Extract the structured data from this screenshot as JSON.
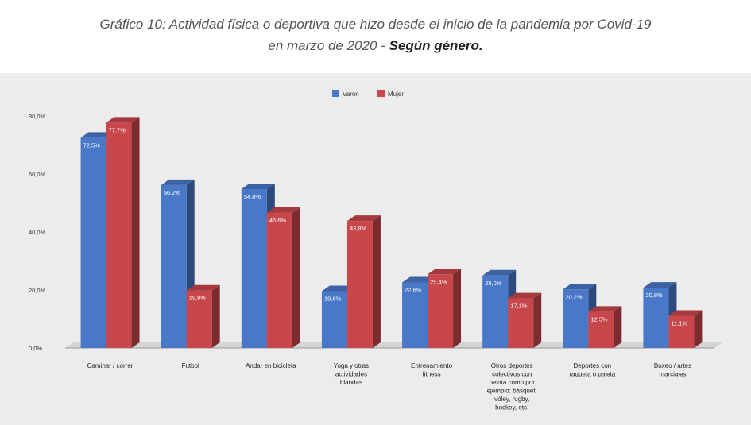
{
  "header": {
    "line1": "Gráfico 10: Actividad física o deportiva que hizo desde el inicio de la pandemia por Covid-19",
    "line2_prefix": "en marzo de 2020 - ",
    "line2_emphasis": "Según género."
  },
  "chart_data": {
    "type": "bar",
    "title": "",
    "xlabel": "",
    "ylabel": "",
    "ylim": [
      0,
      80
    ],
    "yticks": [
      "0,0%",
      "20,0%",
      "40,0%",
      "60,0%",
      "80,0%"
    ],
    "grid": false,
    "legend_position": "top-center",
    "categories": [
      [
        "Caminar / correr"
      ],
      [
        "Futbol"
      ],
      [
        "Andar en bicicleta"
      ],
      [
        "Yoga y otras",
        "actividades",
        "blandas"
      ],
      [
        "Entrenamiento",
        "fitness"
      ],
      [
        "Otros deportes",
        "colectivos con",
        "pelota como por",
        "ejemplo: básquet,",
        "vóley, rugby,",
        "hockey, etc."
      ],
      [
        "Deportes con",
        "raqueta o paleta"
      ],
      [
        "Boxeo / artes",
        "marciales"
      ]
    ],
    "series": [
      {
        "name": "Varón",
        "color": "#4a78c8",
        "values": [
          72.5,
          56.2,
          54.8,
          19.6,
          22.6,
          25.0,
          20.2,
          20.8
        ],
        "labels": [
          "72,5%",
          "56,2%",
          "54,8%",
          "19,6%",
          "22,6%",
          "25,0%",
          "20,2%",
          "20,8%"
        ]
      },
      {
        "name": "Mujer",
        "color": "#c8474a",
        "values": [
          77.7,
          19.8,
          46.6,
          43.8,
          25.4,
          17.1,
          12.5,
          11.1
        ],
        "labels": [
          "77,7%",
          "19,8%",
          "46,6%",
          "43,8%",
          "25,4%",
          "17,1%",
          "12,5%",
          "11,1%"
        ]
      }
    ]
  }
}
